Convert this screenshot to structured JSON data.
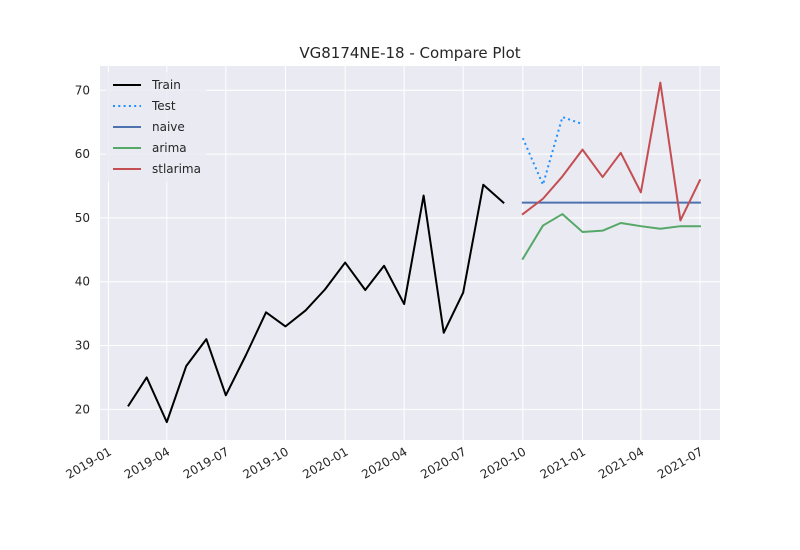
{
  "chart_data": {
    "type": "line",
    "title": "VG8174NE-18 - Compare Plot",
    "xlabel": "",
    "ylabel": "",
    "x_range": [
      "2018-12-19",
      "2021-08-01"
    ],
    "ylim": [
      15.2,
      73.8
    ],
    "grid": true,
    "legend_position": "top-left",
    "x_ticks": [
      "2019-01",
      "2019-04",
      "2019-07",
      "2019-10",
      "2020-01",
      "2020-04",
      "2020-07",
      "2020-10",
      "2021-01",
      "2021-04",
      "2021-07"
    ],
    "y_ticks": [
      20,
      30,
      40,
      50,
      60,
      70
    ],
    "series": [
      {
        "name": "Train",
        "color": "#000000",
        "style": "solid",
        "x": [
          "2019-02-01",
          "2019-03-01",
          "2019-04-01",
          "2019-05-01",
          "2019-06-01",
          "2019-07-01",
          "2019-08-01",
          "2019-09-01",
          "2019-10-01",
          "2019-11-01",
          "2019-12-01",
          "2020-01-01",
          "2020-02-01",
          "2020-03-01",
          "2020-04-01",
          "2020-05-01",
          "2020-06-01",
          "2020-07-01",
          "2020-08-01",
          "2020-09-01"
        ],
        "values": [
          20.6,
          25.0,
          18.0,
          26.8,
          31.0,
          22.2,
          28.5,
          35.2,
          33.0,
          35.5,
          38.8,
          43.0,
          38.7,
          42.5,
          36.5,
          53.5,
          32.0,
          38.3,
          55.2,
          52.4
        ]
      },
      {
        "name": "Test",
        "color": "#1e90ff",
        "style": "dotted",
        "x": [
          "2020-10-01",
          "2020-11-01",
          "2020-12-01",
          "2021-01-01"
        ],
        "values": [
          62.5,
          55.2,
          65.8,
          64.7
        ]
      },
      {
        "name": "naive",
        "color": "#4c72b0",
        "style": "solid",
        "x": [
          "2020-10-01",
          "2020-11-01",
          "2020-12-01",
          "2021-01-01",
          "2021-02-01",
          "2021-03-01",
          "2021-04-01",
          "2021-05-01",
          "2021-06-01",
          "2021-07-01"
        ],
        "values": [
          52.4,
          52.4,
          52.4,
          52.4,
          52.4,
          52.4,
          52.4,
          52.4,
          52.4,
          52.4
        ]
      },
      {
        "name": "arima",
        "color": "#55a868",
        "style": "solid",
        "x": [
          "2020-10-01",
          "2020-11-01",
          "2020-12-01",
          "2021-01-01",
          "2021-02-01",
          "2021-03-01",
          "2021-04-01",
          "2021-05-01",
          "2021-06-01",
          "2021-07-01"
        ],
        "values": [
          43.6,
          48.8,
          50.6,
          47.8,
          48.0,
          49.2,
          48.7,
          48.3,
          48.7,
          48.7
        ]
      },
      {
        "name": "stlarima",
        "color": "#c44e52",
        "style": "solid",
        "x": [
          "2020-10-01",
          "2020-11-01",
          "2020-12-01",
          "2021-01-01",
          "2021-02-01",
          "2021-03-01",
          "2021-04-01",
          "2021-05-01",
          "2021-06-01",
          "2021-07-01"
        ],
        "values": [
          50.6,
          53.0,
          56.5,
          60.7,
          56.4,
          60.2,
          54.0,
          71.2,
          49.6,
          55.9
        ]
      }
    ]
  }
}
